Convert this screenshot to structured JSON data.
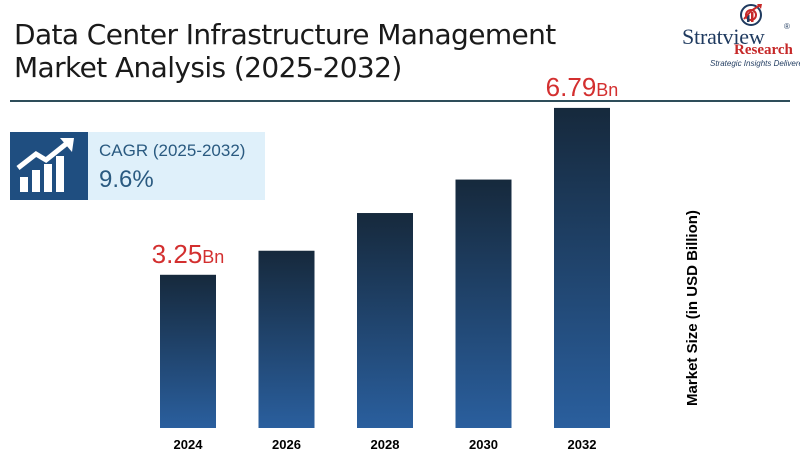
{
  "header": {
    "title": "Data Center Infrastructure Management Market Analysis (2025-2032)"
  },
  "logo": {
    "name": "Stratview",
    "reg": "®",
    "sub": "Research",
    "tagline": "Strategic Insights Delivered"
  },
  "cagr": {
    "label": "CAGR (2025-2032)",
    "value": "9.6%"
  },
  "colors": {
    "bar_top": "#16293c",
    "bar_bottom": "#2a5f9e",
    "value_label": "#d32f2f",
    "title": "#1a1a1a",
    "divider": "#2e4d5a"
  },
  "chart_data": {
    "type": "bar",
    "title": "Data Center Infrastructure Management Market Analysis (2025-2032)",
    "xlabel": "",
    "ylabel": "Market Size (in USD Billion)",
    "categories": [
      "2024",
      "2026",
      "2028",
      "2030",
      "2032"
    ],
    "values": [
      3.25,
      3.76,
      4.56,
      5.27,
      6.79
    ],
    "ylim": [
      0,
      7
    ],
    "value_labels": [
      {
        "index": 0,
        "number": "3.25",
        "unit": "Bn"
      },
      {
        "index": 4,
        "number": "6.79",
        "unit": "Bn"
      }
    ],
    "grid": false,
    "legend": "none"
  }
}
